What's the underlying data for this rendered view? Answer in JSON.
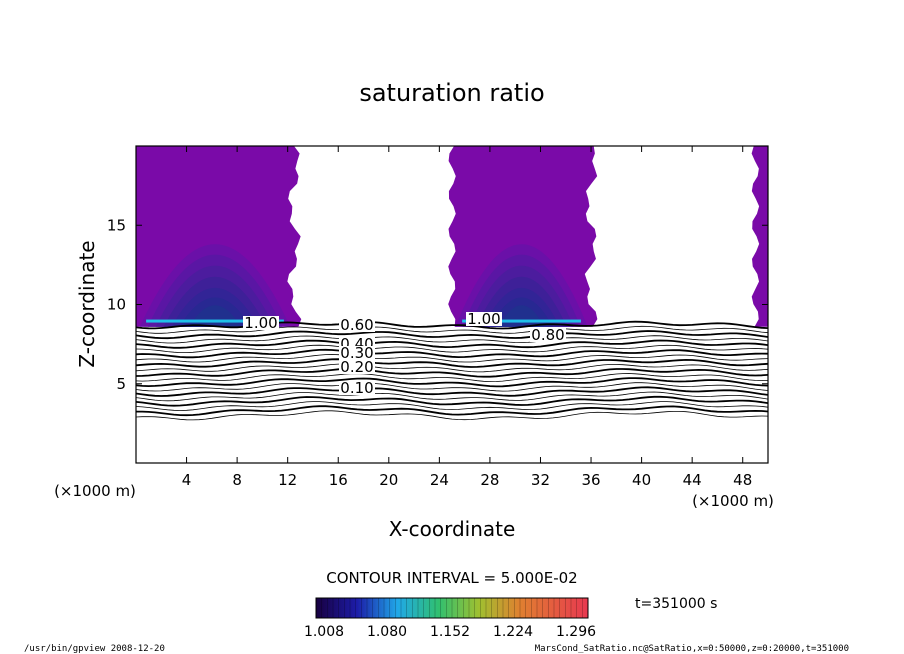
{
  "chart_data": {
    "type": "heatmap",
    "title": "saturation ratio",
    "xlabel": "X-coordinate",
    "ylabel": "Z-coordinate",
    "x_unit_label": "(×1000 m)",
    "y_unit_label": "(×1000 m)",
    "xlim": [
      0,
      50
    ],
    "ylim": [
      0,
      20
    ],
    "x_ticks": [
      "4",
      "8",
      "12",
      "16",
      "20",
      "24",
      "28",
      "32",
      "36",
      "40",
      "44",
      "48"
    ],
    "y_ticks": [
      "5",
      "10",
      "15"
    ],
    "contour_interval_label": "CONTOUR INTERVAL = 5.000E-02",
    "contour_labels": [
      "1.00",
      "0.80",
      "0.60",
      "0.40",
      "0.30",
      "0.20",
      "0.10"
    ],
    "colorbar_ticks": [
      "1.008",
      "1.080",
      "1.152",
      "1.224",
      "1.296"
    ],
    "colorbar_range": [
      1.008,
      1.296
    ],
    "contour_levels": [
      0.1,
      0.15,
      0.2,
      0.25,
      0.3,
      0.35,
      0.4,
      0.45,
      0.5,
      0.55,
      0.6,
      0.65,
      0.7,
      0.75,
      0.8,
      0.85,
      0.9,
      0.95,
      1.0
    ],
    "supersaturated_regions_x": [
      [
        0,
        12.5
      ],
      [
        25,
        36
      ],
      [
        49,
        50
      ]
    ],
    "colors": {
      "fill_top": "#7a0aa8",
      "fill_mid": "#4a1aa0",
      "fill_deep": "#2a2890",
      "fill_edge": "#20c0e8"
    }
  },
  "annotations": {
    "time": "t=351000 s",
    "footer_left": "/usr/bin/gpview   2008-12-20",
    "footer_right": "MarsCond_SatRatio.nc@SatRatio,x=0:50000,z=0:20000,t=351000"
  }
}
